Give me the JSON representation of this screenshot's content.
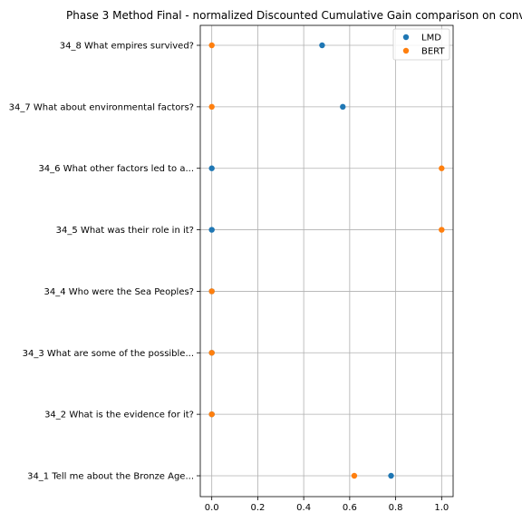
{
  "chart_data": {
    "type": "scatter",
    "title": "Phase 3 Method Final - normalized Discounted Cumulative Gain comparison on conv",
    "xlabel": "",
    "ylabel": "",
    "xlim": [
      -0.05,
      1.05
    ],
    "xticks": [
      "0.0",
      "0.2",
      "0.4",
      "0.6",
      "0.8",
      "1.0"
    ],
    "xtick_values": [
      0.0,
      0.2,
      0.4,
      0.6,
      0.8,
      1.0
    ],
    "categories": [
      "34_1 Tell me about the Bronze Age...",
      "34_2 What is the evidence for it?",
      "34_3 What are some of the possible...",
      "34_4 Who were the Sea Peoples?",
      "34_5 What was their role in it?",
      "34_6 What other factors led to a...",
      "34_7 What about environmental factors?",
      "34_8 What empires survived?"
    ],
    "series": [
      {
        "name": "LMD",
        "color": "#1f77b4",
        "values": [
          0.78,
          0.0,
          0.0,
          0.0,
          0.0,
          0.0,
          0.57,
          0.48
        ]
      },
      {
        "name": "BERT",
        "color": "#ff7f0e",
        "values": [
          0.62,
          0.0,
          0.0,
          0.0,
          1.0,
          1.0,
          0.0,
          0.0
        ]
      }
    ],
    "grid": true,
    "legend": "top-right"
  }
}
